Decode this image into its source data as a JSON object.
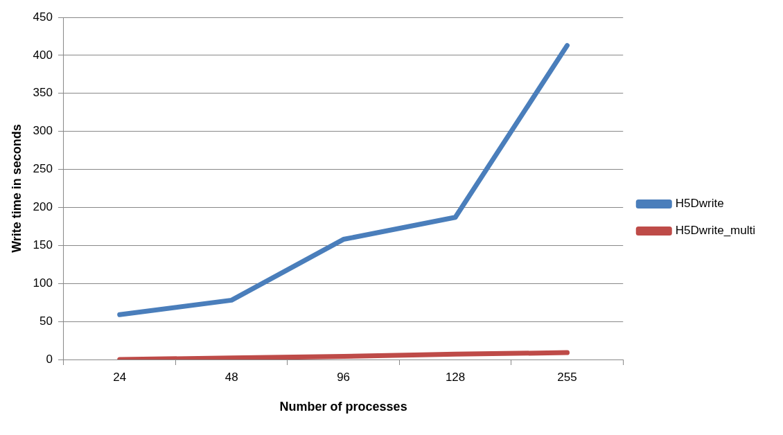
{
  "chart_data": {
    "type": "line",
    "xlabel": "Number of processes",
    "ylabel": "Write time in seconds",
    "categories": [
      "24",
      "48",
      "96",
      "128",
      "255"
    ],
    "series": [
      {
        "name": "H5Dwrite",
        "color": "#4a7ebb",
        "values": [
          59,
          78,
          158,
          187,
          413
        ]
      },
      {
        "name": "H5Dwrite_multi",
        "color": "#be4b48",
        "values": [
          0,
          2,
          4,
          7,
          9
        ]
      }
    ],
    "ylim": [
      0,
      450
    ],
    "yticks": [
      0,
      50,
      100,
      150,
      200,
      250,
      300,
      350,
      400,
      450
    ],
    "grid": "y",
    "legend": "right",
    "marker": "none",
    "line_style": "solid"
  }
}
